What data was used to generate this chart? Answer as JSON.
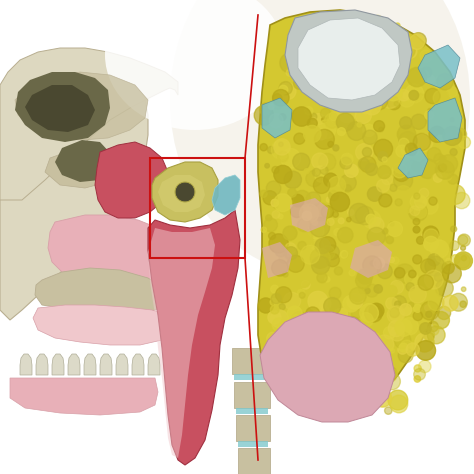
{
  "background_color": "#ffffff",
  "figsize": [
    4.74,
    4.74
  ],
  "dpi": 100,
  "colors": {
    "bone_light": "#ddd8c0",
    "bone_mid": "#c8c0a0",
    "bone_dark": "#b8ae90",
    "bone_inner": "#c0b898",
    "cavity_dark": "#6a6848",
    "cavity_darker": "#4a4830",
    "red_tissue": "#c85060",
    "red_dark": "#a03040",
    "red_bright": "#d06070",
    "pink_mucosa": "#e8b0b8",
    "pink_light": "#f0c8cc",
    "pink_soft": "#d8a0a8",
    "torus_yellow": "#c8c060",
    "torus_yellow2": "#d4cc70",
    "torus_dark": "#a8a040",
    "blue_cyan": "#70b8c0",
    "blue_light": "#90ccd4",
    "teeth_white": "#dcdac8",
    "teeth_edge": "#b0ae98",
    "spine_bone": "#c8c0a0",
    "spine_disc": "#80c8cc",
    "fat_yellow": "#d4c830",
    "fat_yellow2": "#c8bc28",
    "fat_yellow3": "#e0d040",
    "fat_pink": "#dca8b4",
    "fat_blue": "#78c0c8",
    "fat_white": "#e8eeec",
    "fat_gray": "#c0c8c4",
    "red_line": "#cc1010",
    "white_bg": "#ffffff",
    "grad_white": "#f0ece0",
    "grad_tan": "#c8c4a8"
  }
}
